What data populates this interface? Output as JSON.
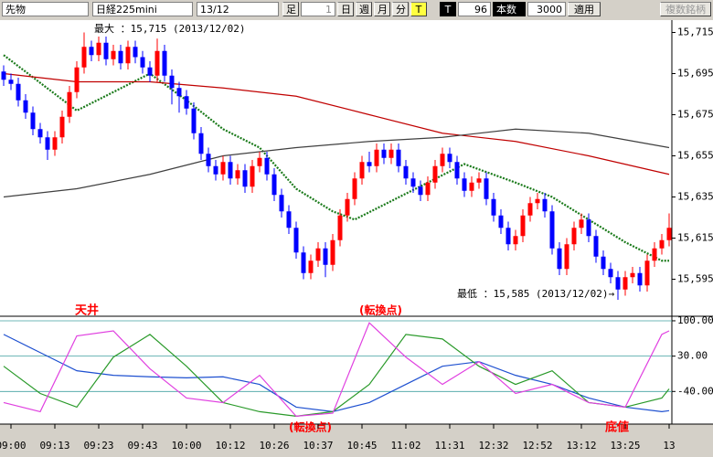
{
  "toolbar": {
    "market": "先物",
    "symbol": "日経225mini",
    "month": "13/12",
    "bar_label": "足",
    "bar_size": "1",
    "periods": [
      "日",
      "週",
      "月",
      "分",
      "T"
    ],
    "t_label": "T",
    "t_value": "96",
    "count_label": "本数",
    "count_value": "3000",
    "apply": "適用",
    "multi": "複数銘柄"
  },
  "chart_data": [
    {
      "type": "candlestick",
      "annotations": {
        "max": "最大 ：15,715 (2013/12/02)",
        "min": "最低 ：15,585 (2013/12/02)→"
      },
      "categories": [
        null,
        "09:00",
        null,
        null,
        null,
        null,
        null,
        "09:13",
        null,
        null,
        null,
        null,
        null,
        "09:23",
        null,
        null,
        null,
        null,
        null,
        "09:43",
        null,
        null,
        null,
        null,
        null,
        "10:00",
        null,
        null,
        null,
        null,
        null,
        "10:12",
        null,
        null,
        null,
        null,
        null,
        "10:26",
        null,
        null,
        null,
        null,
        null,
        "10:37",
        null,
        null,
        null,
        null,
        null,
        "10:45",
        null,
        null,
        null,
        null,
        null,
        "11:02",
        null,
        null,
        null,
        null,
        null,
        "11:31",
        null,
        null,
        null,
        null,
        null,
        "12:32",
        null,
        null,
        null,
        null,
        null,
        "12:52",
        null,
        null,
        null,
        null,
        null,
        "13:12",
        null,
        null,
        null,
        null,
        null,
        "13:25",
        null,
        null,
        null,
        null,
        null,
        "13"
      ],
      "open": [
        15696,
        15692,
        15690,
        15682,
        15676,
        15668,
        15664,
        15658,
        15664,
        15674,
        15686,
        15698,
        15708,
        15704,
        15710,
        15702,
        15706,
        15700,
        15708,
        15703,
        15698,
        15694,
        15706,
        15694,
        15688,
        15684,
        15678,
        15666,
        15656,
        15650,
        15646,
        15652,
        15644,
        15648,
        15640,
        15650,
        15654,
        15646,
        15636,
        15628,
        15620,
        15608,
        15598,
        15604,
        15610,
        15602,
        15614,
        15626,
        15634,
        15644,
        15652,
        15650,
        15658,
        15654,
        15658,
        15650,
        15644,
        15640,
        15636,
        15642,
        15650,
        15656,
        15652,
        15644,
        15638,
        15642,
        15644,
        15634,
        15626,
        15620,
        15612,
        15616,
        15626,
        15632,
        15634,
        15628,
        15610,
        15600,
        15612,
        15620,
        15624,
        15616,
        15606,
        15600,
        15596,
        15590,
        15596,
        15598,
        15592,
        15604,
        15610,
        15614
      ],
      "high": [
        15699,
        15695,
        15693,
        15685,
        15679,
        15671,
        15667,
        15667,
        15677,
        15689,
        15701,
        15715,
        15711,
        15713,
        15713,
        15709,
        15709,
        15711,
        15711,
        15706,
        15701,
        15712,
        15709,
        15697,
        15691,
        15687,
        15681,
        15669,
        15659,
        15653,
        15655,
        15655,
        15651,
        15651,
        15653,
        15657,
        15657,
        15649,
        15639,
        15631,
        15623,
        15611,
        15607,
        15613,
        15613,
        15617,
        15629,
        15637,
        15647,
        15655,
        15657,
        15661,
        15661,
        15661,
        15661,
        15653,
        15647,
        15643,
        15645,
        15653,
        15659,
        15659,
        15655,
        15647,
        15645,
        15647,
        15647,
        15637,
        15629,
        15623,
        15619,
        15629,
        15635,
        15637,
        15637,
        15631,
        15613,
        15615,
        15623,
        15627,
        15627,
        15619,
        15609,
        15603,
        15599,
        15599,
        15601,
        15601,
        15607,
        15613,
        15617,
        15627
      ],
      "low": [
        15689,
        15687,
        15679,
        15673,
        15665,
        15661,
        15653,
        15655,
        15661,
        15671,
        15683,
        15695,
        15701,
        15701,
        15699,
        15699,
        15697,
        15697,
        15700,
        15695,
        15691,
        15691,
        15691,
        15680,
        15676,
        15675,
        15663,
        15653,
        15647,
        15643,
        15643,
        15641,
        15641,
        15637,
        15637,
        15647,
        15643,
        15633,
        15625,
        15617,
        15605,
        15595,
        15595,
        15601,
        15596,
        15599,
        15611,
        15623,
        15631,
        15641,
        15647,
        15647,
        15651,
        15651,
        15647,
        15641,
        15637,
        15633,
        15633,
        15639,
        15647,
        15649,
        15641,
        15635,
        15635,
        15639,
        15631,
        15623,
        15617,
        15609,
        15609,
        15613,
        15623,
        15629,
        15625,
        15607,
        15597,
        15597,
        15609,
        15617,
        15613,
        15603,
        15597,
        15593,
        15585,
        15587,
        15593,
        15589,
        15589,
        15601,
        15607,
        15611
      ],
      "close": [
        15692,
        15690,
        15682,
        15676,
        15668,
        15664,
        15658,
        15664,
        15674,
        15686,
        15698,
        15708,
        15704,
        15710,
        15702,
        15706,
        15700,
        15708,
        15703,
        15698,
        15694,
        15706,
        15694,
        15688,
        15684,
        15678,
        15666,
        15656,
        15650,
        15646,
        15652,
        15644,
        15648,
        15640,
        15650,
        15654,
        15646,
        15636,
        15628,
        15620,
        15608,
        15598,
        15604,
        15610,
        15602,
        15614,
        15626,
        15634,
        15644,
        15652,
        15650,
        15658,
        15654,
        15658,
        15650,
        15644,
        15640,
        15636,
        15642,
        15650,
        15656,
        15652,
        15644,
        15638,
        15642,
        15644,
        15634,
        15626,
        15620,
        15612,
        15616,
        15626,
        15632,
        15634,
        15628,
        15610,
        15600,
        15612,
        15620,
        15624,
        15616,
        15606,
        15600,
        15596,
        15590,
        15596,
        15598,
        15592,
        15604,
        15610,
        15614,
        15620
      ],
      "up_color": "#ff0000",
      "down_color": "#0000ff",
      "lines": [
        {
          "color": "#1a7a1a",
          "dotted": true,
          "x": [
            0,
            10,
            15,
            20,
            25,
            30,
            35,
            40,
            45,
            48,
            53,
            58,
            63,
            70,
            75,
            80,
            85,
            90,
            91
          ],
          "values": [
            15704,
            15677,
            15686,
            15695,
            15682,
            15668,
            15659,
            15639,
            15628,
            15624,
            15633,
            15642,
            15651,
            15642,
            15635,
            15624,
            15613,
            15604,
            15604
          ]
        },
        {
          "color": "#c00000",
          "dotted": false,
          "x": [
            0,
            10,
            20,
            30,
            40,
            50,
            60,
            70,
            80,
            91
          ],
          "values": [
            15695,
            15691,
            15691,
            15688,
            15684,
            15675,
            15666,
            15662,
            15655,
            15646
          ]
        },
        {
          "color": "#404040",
          "dotted": false,
          "x": [
            0,
            10,
            20,
            30,
            40,
            50,
            60,
            70,
            80,
            91
          ],
          "values": [
            15635,
            15639,
            15646,
            15655,
            15659,
            15662,
            15664,
            15668,
            15666,
            15659
          ]
        }
      ],
      "ylim": [
        15577,
        15721
      ],
      "yticks": [
        {
          "value": 15715,
          "label": "15,715"
        },
        {
          "value": 15695,
          "label": "15,695"
        },
        {
          "value": 15675,
          "label": "15,675"
        },
        {
          "value": 15655,
          "label": "15,655"
        },
        {
          "value": 15635,
          "label": "15,635"
        },
        {
          "value": 15615,
          "label": "15,615"
        },
        {
          "value": 15595,
          "label": "15,595"
        }
      ]
    },
    {
      "type": "line",
      "annotations": {
        "top_left": "天井",
        "top_mid": "(転換点)",
        "bottom_mid": "(転換点)",
        "bottom_right": "底値"
      },
      "series": [
        {
          "color": "#1e50d0",
          "x": [
            0,
            5,
            10,
            15,
            20,
            25,
            30,
            35,
            40,
            45,
            50,
            55,
            60,
            65,
            70,
            75,
            80,
            85,
            90,
            91
          ],
          "values": [
            73,
            37,
            1,
            -8,
            -11,
            -13,
            -11,
            -26,
            -71,
            -80,
            -62,
            -26,
            10,
            19,
            -8,
            -26,
            -53,
            -71,
            -80,
            -78
          ]
        },
        {
          "color": "#2a9a2a",
          "x": [
            0,
            5,
            10,
            15,
            20,
            25,
            30,
            35,
            40,
            45,
            50,
            55,
            60,
            65,
            70,
            75,
            80,
            85,
            90,
            91
          ],
          "values": [
            10,
            -44,
            -71,
            28,
            73,
            10,
            -62,
            -80,
            -89,
            -80,
            -26,
            73,
            64,
            10,
            -26,
            1,
            -62,
            -71,
            -53,
            -35
          ]
        },
        {
          "color": "#e040e0",
          "x": [
            0,
            5,
            10,
            15,
            20,
            25,
            30,
            35,
            40,
            45,
            50,
            55,
            60,
            65,
            70,
            75,
            80,
            85,
            90,
            91
          ],
          "values": [
            -62,
            -80,
            70,
            80,
            5,
            -53,
            -62,
            -8,
            -89,
            -83,
            96,
            28,
            -26,
            19,
            -44,
            -26,
            -62,
            -71,
            73,
            80
          ]
        }
      ],
      "ylim": [
        -101,
        109
      ],
      "yticks": [
        {
          "value": 100,
          "label": "100.00"
        },
        {
          "value": 30,
          "label": "30.00"
        },
        {
          "value": -40,
          "label": "-40.00"
        }
      ]
    }
  ]
}
